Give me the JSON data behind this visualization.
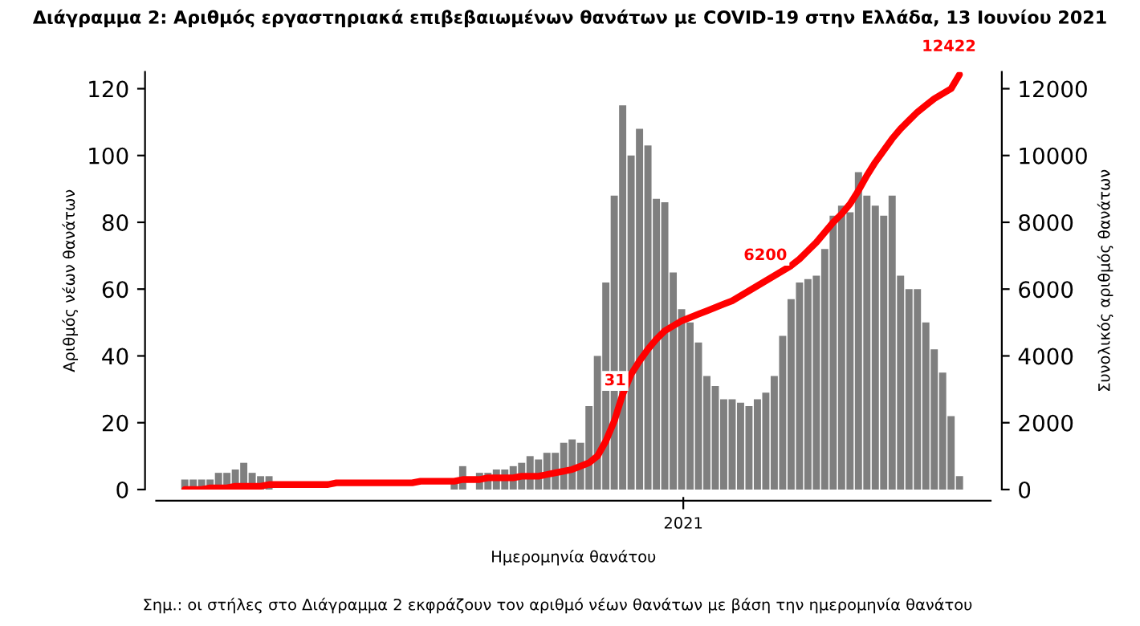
{
  "chart_data": {
    "type": "bar",
    "title": "Διάγραμμα 2: Αριθμός εργαστηριακά επιβεβαιωμένων θανάτων με COVID-19 στην Ελλάδα, 13 Ιουνίου 2021",
    "xlabel": "Ημερομηνία θανάτου",
    "ylabel": "Αριθμός νέων θανάτων",
    "y2label": "Συνολικός αριθμός θανάτων",
    "categories": [
      null,
      null,
      null,
      null,
      null,
      null,
      null,
      null,
      null,
      null,
      null,
      null,
      null,
      null,
      null,
      null,
      null,
      null,
      null,
      null,
      null,
      null,
      null,
      null,
      null,
      null,
      null,
      null,
      null,
      null,
      null,
      null,
      null,
      null,
      null,
      null,
      null,
      null,
      null,
      null,
      null,
      null,
      null,
      null,
      null,
      null,
      null,
      null,
      null,
      null,
      null,
      null,
      null,
      null,
      null,
      null,
      null,
      null,
      null,
      null,
      null,
      null,
      null,
      null,
      null,
      null,
      null,
      null,
      null,
      null,
      null,
      null,
      null,
      null,
      null,
      null,
      null,
      null,
      null,
      null,
      null,
      null,
      null,
      null,
      null,
      null,
      null,
      null,
      null,
      null,
      null,
      null,
      null
    ],
    "series": [
      {
        "color": "#7f7f7f",
        "values": [
          3,
          3,
          3,
          3,
          5,
          5,
          6,
          8,
          5,
          4,
          4,
          null,
          null,
          null,
          null,
          null,
          null,
          null,
          null,
          null,
          null,
          null,
          null,
          null,
          null,
          null,
          null,
          null,
          null,
          null,
          null,
          null,
          3,
          7,
          null,
          5,
          5,
          6,
          6,
          7,
          8,
          10,
          9,
          11,
          11,
          14,
          15,
          14,
          25,
          40,
          62,
          88,
          115,
          100,
          108,
          103,
          87,
          86,
          65,
          54,
          50,
          44,
          34,
          31,
          27,
          27,
          26,
          25,
          27,
          29,
          34,
          46,
          57,
          62,
          63,
          64,
          72,
          82,
          85,
          83,
          95,
          88,
          85,
          82,
          88,
          64,
          60,
          60,
          50,
          42,
          35,
          22,
          4
        ]
      },
      {
        "type": "line",
        "axis": "y2",
        "color": "#ff0000",
        "line_style": "solid",
        "values": [
          0,
          0,
          0,
          50,
          50,
          50,
          100,
          100,
          100,
          100,
          150,
          150,
          150,
          150,
          150,
          150,
          150,
          150,
          200,
          200,
          200,
          200,
          200,
          200,
          200,
          200,
          200,
          200,
          250,
          250,
          250,
          250,
          250,
          300,
          300,
          300,
          350,
          350,
          350,
          350,
          400,
          400,
          400,
          450,
          500,
          550,
          600,
          700,
          800,
          1000,
          1450,
          2050,
          2850,
          3450,
          3850,
          4200,
          4500,
          4750,
          4900,
          5050,
          5150,
          5250,
          5350,
          5450,
          5550,
          5650,
          5800,
          5950,
          6100,
          6250,
          6400,
          6550,
          6700,
          6900,
          7150,
          7400,
          7700,
          8000,
          8250,
          8550,
          8950,
          9400,
          9800,
          10150,
          10500,
          10800,
          11050,
          11300,
          11500,
          11700,
          11850,
          12000,
          12422
        ]
      }
    ],
    "ylim": [
      0,
      125
    ],
    "yticks": [
      0,
      20,
      40,
      60,
      80,
      100,
      120
    ],
    "y2lim": [
      0,
      12500
    ],
    "y2ticks": [
      0,
      2000,
      4000,
      6000,
      8000,
      10000,
      12000
    ],
    "grid": false,
    "legend": false,
    "marker": "none",
    "annotations": [
      "2021",
      "31",
      "6200",
      "12422",
      "Σημ.: οι στήλες στο Διάγραμμα 2 εκφράζουν τον αριθμό νέων θανάτων με βάση την ημερομηνία θανάτου"
    ]
  }
}
